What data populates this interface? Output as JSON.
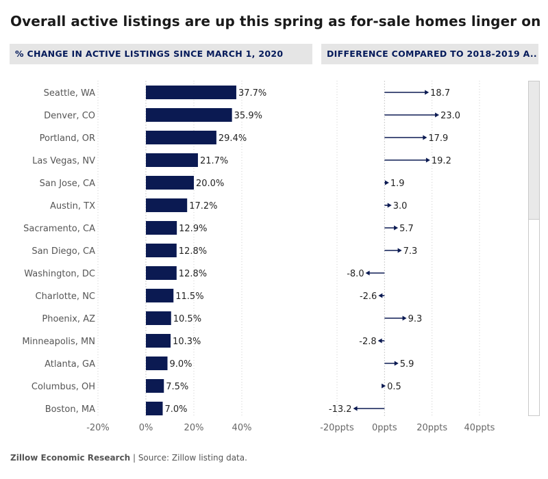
{
  "title": "Overall active listings are up this spring as for-sale homes linger on t..",
  "footer": {
    "org": "Zillow Economic Research",
    "separator": " | ",
    "source": "Source: Zillow listing data."
  },
  "colors": {
    "bar": "#0b1a52",
    "arrow": "#0b1a52",
    "header_bg": "#e5e5e5",
    "header_text": "#041a5a",
    "grid": "#cccccc",
    "axis_text": "#666666"
  },
  "chart_data": [
    {
      "type": "bar",
      "orientation": "horizontal",
      "title": "% CHANGE IN ACTIVE LISTINGS SINCE MARCH 1, 2020",
      "categories": [
        "Seattle, WA",
        "Denver, CO",
        "Portland, OR",
        "Las Vegas, NV",
        "San Jose, CA",
        "Austin, TX",
        "Sacramento, CA",
        "San Diego, CA",
        "Washington, DC",
        "Charlotte, NC",
        "Phoenix, AZ",
        "Minneapolis, MN",
        "Atlanta, GA",
        "Columbus, OH",
        "Boston, MA"
      ],
      "values": [
        37.7,
        35.9,
        29.4,
        21.7,
        20.0,
        17.2,
        12.9,
        12.8,
        12.8,
        11.5,
        10.5,
        10.3,
        9.0,
        7.5,
        7.0
      ],
      "value_labels": [
        "37.7%",
        "35.9%",
        "29.4%",
        "21.7%",
        "20.0%",
        "17.2%",
        "12.9%",
        "12.8%",
        "12.8%",
        "11.5%",
        "10.5%",
        "10.3%",
        "9.0%",
        "7.5%",
        "7.0%"
      ],
      "xlim": [
        -20,
        40
      ],
      "x_ticks": [
        -20,
        0,
        20,
        40
      ],
      "x_tick_labels": [
        "-20%",
        "0%",
        "20%",
        "40%"
      ],
      "grid": true
    },
    {
      "type": "arrow",
      "orientation": "horizontal",
      "title": "DIFFERENCE COMPARED TO 2018-2019 A..",
      "categories": [
        "Seattle, WA",
        "Denver, CO",
        "Portland, OR",
        "Las Vegas, NV",
        "San Jose, CA",
        "Austin, TX",
        "Sacramento, CA",
        "San Diego, CA",
        "Washington, DC",
        "Charlotte, NC",
        "Phoenix, AZ",
        "Minneapolis, MN",
        "Atlanta, GA",
        "Columbus, OH",
        "Boston, MA"
      ],
      "values": [
        18.7,
        23.0,
        17.9,
        19.2,
        1.9,
        3.0,
        5.7,
        7.3,
        -8.0,
        -2.6,
        9.3,
        -2.8,
        5.9,
        0.5,
        -13.2
      ],
      "value_labels": [
        "18.7",
        "23.0",
        "17.9",
        "19.2",
        "1.9",
        "3.0",
        "5.7",
        "7.3",
        "-8.0",
        "-2.6",
        "9.3",
        "-2.8",
        "5.9",
        "0.5",
        "-13.2"
      ],
      "xlim": [
        -20,
        40
      ],
      "x_ticks": [
        -20,
        0,
        20,
        40
      ],
      "x_tick_labels": [
        "-20ppts",
        "0ppts",
        "20ppts",
        "40ppts"
      ],
      "grid": true
    }
  ]
}
